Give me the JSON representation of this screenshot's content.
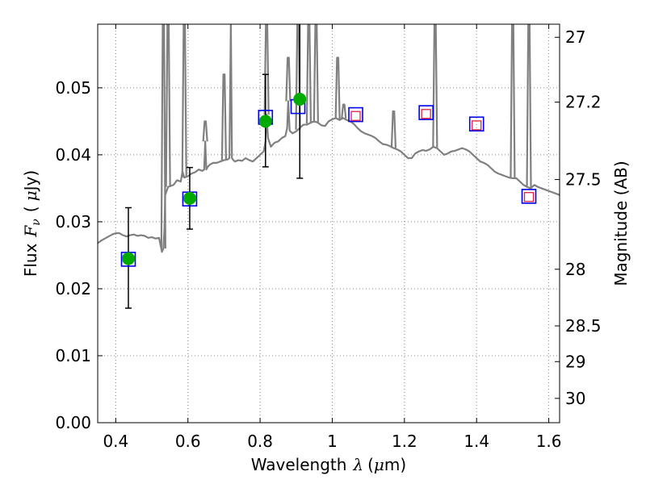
{
  "chart_data": {
    "type": "scatter",
    "xlabel": "Wavelength",
    "xlabel_symbol": "λ",
    "xlabel_unit_open": "(",
    "xlabel_unit_mu": "μ",
    "xlabel_unit_close": "m)",
    "ylabel_left": "Flux",
    "ylabel_symbol": "F",
    "ylabel_symbol_sub": "ν",
    "ylabel_unit_open": "(",
    "ylabel_unit_mu": "μ",
    "ylabel_unit_close": "Jy)",
    "ylabel_right": "Magnitude (AB)",
    "xlim": [
      0.35,
      1.63
    ],
    "ylim": [
      0.0,
      0.0595
    ],
    "grid": true,
    "x_ticks": [
      0.4,
      0.6,
      0.8,
      1.0,
      1.2,
      1.4,
      1.6
    ],
    "x_tick_labels": [
      "0.4",
      "0.6",
      "0.8",
      "1",
      "1.2",
      "1.4",
      "1.6"
    ],
    "y_ticks": [
      0.0,
      0.01,
      0.02,
      0.03,
      0.04,
      0.05
    ],
    "y_tick_labels": [
      "0.00",
      "0.01",
      "0.02",
      "0.03",
      "0.04",
      "0.05"
    ],
    "right_ticks": [
      27.0,
      27.2,
      27.5,
      28.0,
      28.5,
      29.0,
      30.0
    ],
    "right_tick_labels": [
      "27",
      "27.2",
      "27.5",
      "28",
      "28.5",
      "29",
      "30"
    ],
    "colors": {
      "model": "#808080",
      "observed": "#00aa00",
      "model_box": "#0000ee",
      "prediction": "#dd2244",
      "errorbar": "#000000",
      "grid": "#888888"
    },
    "series": [
      {
        "name": "",
        "kind": "model_spectrum",
        "x": [
          0.35,
          0.36,
          0.37,
          0.38,
          0.39,
          0.4,
          0.41,
          0.42,
          0.43,
          0.44,
          0.45,
          0.46,
          0.47,
          0.48,
          0.49,
          0.5,
          0.51,
          0.52,
          0.528,
          0.532,
          0.535,
          0.537,
          0.545,
          0.56,
          0.57,
          0.58,
          0.585,
          0.59,
          0.6,
          0.61,
          0.62,
          0.63,
          0.64,
          0.645,
          0.648,
          0.651,
          0.655,
          0.66,
          0.67,
          0.68,
          0.69,
          0.7,
          0.71,
          0.715,
          0.719,
          0.722,
          0.726,
          0.73,
          0.74,
          0.75,
          0.76,
          0.77,
          0.78,
          0.79,
          0.8,
          0.81,
          0.815,
          0.818,
          0.822,
          0.83,
          0.84,
          0.85,
          0.86,
          0.87,
          0.875,
          0.878,
          0.882,
          0.89,
          0.9,
          0.91,
          0.92,
          0.93,
          0.94,
          0.95,
          0.96,
          0.97,
          0.98,
          0.99,
          1.0,
          1.01,
          1.02,
          1.03,
          1.04,
          1.05,
          1.06,
          1.07,
          1.08,
          1.09,
          1.1,
          1.11,
          1.12,
          1.13,
          1.14,
          1.15,
          1.16,
          1.17,
          1.18,
          1.19,
          1.2,
          1.21,
          1.22,
          1.23,
          1.24,
          1.25,
          1.26,
          1.27,
          1.28,
          1.29,
          1.3,
          1.31,
          1.32,
          1.33,
          1.34,
          1.35,
          1.36,
          1.37,
          1.38,
          1.39,
          1.4,
          1.41,
          1.42,
          1.43,
          1.44,
          1.45,
          1.46,
          1.47,
          1.48,
          1.49,
          1.5,
          1.51,
          1.52,
          1.53,
          1.54,
          1.55,
          1.56,
          1.57,
          1.58,
          1.59,
          1.6,
          1.61,
          1.62,
          1.63
        ],
        "y": [
          0.0268,
          0.0272,
          0.0275,
          0.0278,
          0.0281,
          0.0283,
          0.0283,
          0.028,
          0.0278,
          0.028,
          0.0281,
          0.0279,
          0.028,
          0.0279,
          0.0276,
          0.0277,
          0.0275,
          0.0276,
          0.0255,
          0.026,
          0.029,
          0.034,
          0.0352,
          0.0355,
          0.0362,
          0.036,
          0.0375,
          0.0366,
          0.0368,
          0.0372,
          0.0374,
          0.0378,
          0.0376,
          0.0378,
          0.042,
          0.0378,
          0.0382,
          0.0385,
          0.0388,
          0.0388,
          0.039,
          0.0392,
          0.0393,
          0.0395,
          0.06,
          0.0395,
          0.0392,
          0.039,
          0.0392,
          0.0391,
          0.0395,
          0.0392,
          0.039,
          0.0395,
          0.04,
          0.0405,
          0.042,
          0.046,
          0.0425,
          0.0412,
          0.0418,
          0.042,
          0.0425,
          0.0428,
          0.044,
          0.048,
          0.0436,
          0.0432,
          0.0435,
          0.044,
          0.0445,
          0.0445,
          0.0448,
          0.045,
          0.0448,
          0.0444,
          0.0443,
          0.045,
          0.0453,
          0.0455,
          0.0452,
          0.0455,
          0.0452,
          0.045,
          0.0446,
          0.044,
          0.0435,
          0.0432,
          0.043,
          0.0428,
          0.0425,
          0.042,
          0.0416,
          0.0415,
          0.0413,
          0.041,
          0.0408,
          0.0405,
          0.04,
          0.0395,
          0.0395,
          0.0402,
          0.0405,
          0.0407,
          0.0406,
          0.0408,
          0.0412,
          0.041,
          0.0405,
          0.04,
          0.0402,
          0.0405,
          0.0406,
          0.0408,
          0.041,
          0.0408,
          0.0405,
          0.04,
          0.0395,
          0.039,
          0.0388,
          0.0385,
          0.038,
          0.0375,
          0.0372,
          0.037,
          0.0368,
          0.0366,
          0.0365,
          0.0365,
          0.036,
          0.0355,
          0.0352,
          0.035,
          0.0355,
          0.0352,
          0.035,
          0.0348,
          0.0346,
          0.0344,
          0.0342,
          0.034
        ]
      },
      {
        "name": "",
        "kind": "emission_lines",
        "x": [
          0.532,
          0.545,
          0.59,
          0.648,
          0.7,
          0.719,
          0.818,
          0.878,
          0.905,
          0.935,
          0.955,
          1.015,
          1.032,
          1.17,
          1.285,
          1.5,
          1.545
        ],
        "y": [
          0.06,
          0.06,
          0.06,
          0.045,
          0.052,
          0.06,
          0.06,
          0.0545,
          0.06,
          0.06,
          0.06,
          0.0545,
          0.0475,
          0.0465,
          0.06,
          0.06,
          0.06
        ]
      },
      {
        "name": "",
        "kind": "model_photometry",
        "x": [
          0.435,
          0.605,
          0.815,
          0.905,
          1.065,
          1.26,
          1.4,
          1.545
        ],
        "y": [
          0.0244,
          0.0334,
          0.0456,
          0.0472,
          0.046,
          0.0463,
          0.0446,
          0.0338
        ]
      },
      {
        "name": "",
        "kind": "observed_photometry",
        "x": [
          0.435,
          0.605,
          0.815,
          0.91
        ],
        "y": [
          0.0245,
          0.0335,
          0.045,
          0.0483
        ],
        "err_low": [
          0.0171,
          0.0289,
          0.0382,
          0.0365
        ],
        "err_high": [
          0.0321,
          0.0381,
          0.052,
          0.061
        ]
      },
      {
        "name": "",
        "kind": "predicted_photometry",
        "x": [
          1.065,
          1.26,
          1.4,
          1.545
        ],
        "y": [
          0.0458,
          0.0461,
          0.0444,
          0.0337
        ]
      }
    ]
  }
}
